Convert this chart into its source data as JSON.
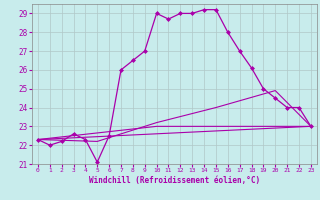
{
  "xlabel": "Windchill (Refroidissement éolien,°C)",
  "ylabel": "",
  "background_color": "#c8ecec",
  "grid_color": "#b0c8c8",
  "line_color": "#aa00aa",
  "xlim": [
    -0.5,
    23.5
  ],
  "ylim": [
    21,
    29.5
  ],
  "yticks": [
    21,
    22,
    23,
    24,
    25,
    26,
    27,
    28,
    29
  ],
  "xticks": [
    0,
    1,
    2,
    3,
    4,
    5,
    6,
    7,
    8,
    9,
    10,
    11,
    12,
    13,
    14,
    15,
    16,
    17,
    18,
    19,
    20,
    21,
    22,
    23
  ],
  "series": [
    {
      "x": [
        0,
        1,
        2,
        3,
        4,
        5,
        6,
        7,
        8,
        9,
        10,
        11,
        12,
        13,
        14,
        15,
        16,
        17,
        18,
        19,
        20,
        21,
        22,
        23
      ],
      "y": [
        22.3,
        22.0,
        22.2,
        22.6,
        22.3,
        21.1,
        22.5,
        26.0,
        26.5,
        27.0,
        29.0,
        28.7,
        29.0,
        29.0,
        29.2,
        29.2,
        28.0,
        27.0,
        26.1,
        25.0,
        24.5,
        24.0,
        24.0,
        23.0
      ],
      "marker": "D",
      "markersize": 2.0,
      "linewidth": 0.9,
      "has_marker": true
    },
    {
      "x": [
        0,
        23
      ],
      "y": [
        22.3,
        23.0
      ],
      "markersize": 0,
      "linewidth": 0.8,
      "has_marker": false
    },
    {
      "x": [
        0,
        10,
        23
      ],
      "y": [
        22.3,
        23.0,
        23.0
      ],
      "markersize": 0,
      "linewidth": 0.8,
      "has_marker": false
    },
    {
      "x": [
        0,
        5,
        10,
        15,
        20,
        23
      ],
      "y": [
        22.3,
        22.2,
        23.2,
        24.0,
        24.9,
        23.0
      ],
      "markersize": 0,
      "linewidth": 0.8,
      "has_marker": false
    }
  ]
}
